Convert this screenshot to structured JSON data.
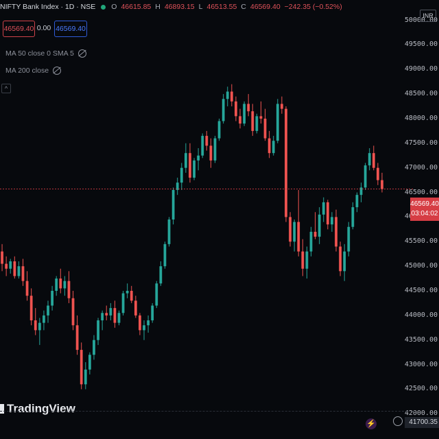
{
  "header": {
    "symbol": "NIFTY Bank Index · 1D · NSE",
    "open_label": "O",
    "open": "46615.85",
    "high_label": "H",
    "high": "46893.15",
    "low_label": "L",
    "low": "46513.55",
    "close_label": "C",
    "close": "46569.40",
    "change": "−242.35 (−0.52%)"
  },
  "trade": {
    "sell_price": "46569.40",
    "spread": "0.00",
    "buy_price": "46569.40"
  },
  "indicators": [
    {
      "label": "MA 50 close 0 SMA 5"
    },
    {
      "label": "MA 200 close"
    }
  ],
  "axis": {
    "currency": "INR",
    "last_price": "46569.40",
    "countdown": "03:04:02",
    "low_marker": "41700.35"
  },
  "branding": {
    "logo_text": "TradingView"
  },
  "colors": {
    "up": "#26a69a",
    "down": "#ef5350",
    "background": "#07090d",
    "price_line": "#d63d44"
  },
  "chart_data": {
    "type": "candlestick",
    "y_axis_ticks": [
      "50000.00",
      "49500.00",
      "49000.00",
      "48500.00",
      "48000.00",
      "47500.00",
      "47000.00",
      "46500.00",
      "46000.00",
      "45500.00",
      "45000.00",
      "44500.00",
      "44000.00",
      "43500.00",
      "43000.00",
      "42500.00",
      "42000.00"
    ],
    "ylim": [
      41600,
      50300
    ],
    "last_close": 46569.4,
    "candles": [
      {
        "o": 45300,
        "h": 45450,
        "l": 44900,
        "c": 45050
      },
      {
        "o": 45050,
        "h": 45200,
        "l": 44800,
        "c": 44950
      },
      {
        "o": 44950,
        "h": 45150,
        "l": 44850,
        "c": 45100
      },
      {
        "o": 45100,
        "h": 45200,
        "l": 44750,
        "c": 44800
      },
      {
        "o": 44800,
        "h": 45100,
        "l": 44750,
        "c": 45000
      },
      {
        "o": 45000,
        "h": 45150,
        "l": 44600,
        "c": 44700
      },
      {
        "o": 44700,
        "h": 44900,
        "l": 44300,
        "c": 44400
      },
      {
        "o": 44400,
        "h": 44550,
        "l": 43800,
        "c": 43900
      },
      {
        "o": 43900,
        "h": 44150,
        "l": 43600,
        "c": 43700
      },
      {
        "o": 43700,
        "h": 43950,
        "l": 43400,
        "c": 43850
      },
      {
        "o": 43850,
        "h": 44100,
        "l": 43700,
        "c": 44000
      },
      {
        "o": 44000,
        "h": 44300,
        "l": 43850,
        "c": 44200
      },
      {
        "o": 44200,
        "h": 44600,
        "l": 44100,
        "c": 44500
      },
      {
        "o": 44500,
        "h": 44800,
        "l": 44400,
        "c": 44750
      },
      {
        "o": 44750,
        "h": 44950,
        "l": 44450,
        "c": 44550
      },
      {
        "o": 44550,
        "h": 44800,
        "l": 44400,
        "c": 44700
      },
      {
        "o": 44700,
        "h": 44900,
        "l": 44250,
        "c": 44350
      },
      {
        "o": 44350,
        "h": 44500,
        "l": 43700,
        "c": 43800
      },
      {
        "o": 43800,
        "h": 44000,
        "l": 43200,
        "c": 43300
      },
      {
        "o": 43300,
        "h": 43450,
        "l": 42500,
        "c": 42600
      },
      {
        "o": 42600,
        "h": 43050,
        "l": 42500,
        "c": 42900
      },
      {
        "o": 42900,
        "h": 43250,
        "l": 42800,
        "c": 43200
      },
      {
        "o": 43200,
        "h": 43600,
        "l": 43100,
        "c": 43500
      },
      {
        "o": 43500,
        "h": 43950,
        "l": 43400,
        "c": 43900
      },
      {
        "o": 43900,
        "h": 44100,
        "l": 43700,
        "c": 44050
      },
      {
        "o": 44050,
        "h": 44200,
        "l": 43900,
        "c": 44000
      },
      {
        "o": 44000,
        "h": 44250,
        "l": 43900,
        "c": 44150
      },
      {
        "o": 44150,
        "h": 44300,
        "l": 43750,
        "c": 43850
      },
      {
        "o": 43850,
        "h": 44100,
        "l": 43800,
        "c": 44050
      },
      {
        "o": 44050,
        "h": 44500,
        "l": 44000,
        "c": 44450
      },
      {
        "o": 44450,
        "h": 44650,
        "l": 44350,
        "c": 44500
      },
      {
        "o": 44500,
        "h": 44600,
        "l": 44250,
        "c": 44300
      },
      {
        "o": 44300,
        "h": 44400,
        "l": 43950,
        "c": 44000
      },
      {
        "o": 44000,
        "h": 44050,
        "l": 43600,
        "c": 43700
      },
      {
        "o": 43700,
        "h": 43900,
        "l": 43500,
        "c": 43800
      },
      {
        "o": 43800,
        "h": 44000,
        "l": 43650,
        "c": 43900
      },
      {
        "o": 43900,
        "h": 44250,
        "l": 43850,
        "c": 44200
      },
      {
        "o": 44200,
        "h": 44700,
        "l": 44150,
        "c": 44650
      },
      {
        "o": 44650,
        "h": 45100,
        "l": 44600,
        "c": 45000
      },
      {
        "o": 45000,
        "h": 45500,
        "l": 44950,
        "c": 45450
      },
      {
        "o": 45450,
        "h": 46000,
        "l": 45400,
        "c": 45950
      },
      {
        "o": 45950,
        "h": 46600,
        "l": 45850,
        "c": 46550
      },
      {
        "o": 46550,
        "h": 46800,
        "l": 46450,
        "c": 46700
      },
      {
        "o": 46700,
        "h": 47100,
        "l": 46550,
        "c": 47000
      },
      {
        "o": 47000,
        "h": 47500,
        "l": 46900,
        "c": 47300
      },
      {
        "o": 47300,
        "h": 47500,
        "l": 46700,
        "c": 46800
      },
      {
        "o": 46800,
        "h": 47200,
        "l": 46750,
        "c": 47150
      },
      {
        "o": 47150,
        "h": 47400,
        "l": 46950,
        "c": 47250
      },
      {
        "o": 47250,
        "h": 47700,
        "l": 47200,
        "c": 47650
      },
      {
        "o": 47650,
        "h": 47750,
        "l": 47350,
        "c": 47450
      },
      {
        "o": 47450,
        "h": 47600,
        "l": 47000,
        "c": 47150
      },
      {
        "o": 47150,
        "h": 47650,
        "l": 47100,
        "c": 47600
      },
      {
        "o": 47600,
        "h": 48000,
        "l": 47550,
        "c": 47950
      },
      {
        "o": 47950,
        "h": 48500,
        "l": 47900,
        "c": 48400
      },
      {
        "o": 48400,
        "h": 48650,
        "l": 48250,
        "c": 48550
      },
      {
        "o": 48550,
        "h": 48700,
        "l": 48250,
        "c": 48350
      },
      {
        "o": 48350,
        "h": 48450,
        "l": 47950,
        "c": 48050
      },
      {
        "o": 48050,
        "h": 48200,
        "l": 47800,
        "c": 47900
      },
      {
        "o": 47900,
        "h": 48350,
        "l": 47850,
        "c": 48300
      },
      {
        "o": 48300,
        "h": 48500,
        "l": 48050,
        "c": 48150
      },
      {
        "o": 48150,
        "h": 48300,
        "l": 47650,
        "c": 47750
      },
      {
        "o": 47750,
        "h": 48100,
        "l": 47700,
        "c": 48050
      },
      {
        "o": 48050,
        "h": 48350,
        "l": 47900,
        "c": 48000
      },
      {
        "o": 48000,
        "h": 48200,
        "l": 47550,
        "c": 47600
      },
      {
        "o": 47600,
        "h": 47750,
        "l": 47200,
        "c": 47300
      },
      {
        "o": 47300,
        "h": 47650,
        "l": 47250,
        "c": 47550
      },
      {
        "o": 47550,
        "h": 48400,
        "l": 47500,
        "c": 48300
      },
      {
        "o": 48300,
        "h": 48450,
        "l": 48100,
        "c": 48200
      },
      {
        "o": 48200,
        "h": 48250,
        "l": 45900,
        "c": 46000
      },
      {
        "o": 46000,
        "h": 46100,
        "l": 45400,
        "c": 45500
      },
      {
        "o": 45500,
        "h": 45950,
        "l": 45300,
        "c": 45900
      },
      {
        "o": 45900,
        "h": 46550,
        "l": 45200,
        "c": 45300
      },
      {
        "o": 45300,
        "h": 45550,
        "l": 44800,
        "c": 44950
      },
      {
        "o": 44950,
        "h": 45400,
        "l": 44750,
        "c": 45300
      },
      {
        "o": 45300,
        "h": 45800,
        "l": 45200,
        "c": 45700
      },
      {
        "o": 45700,
        "h": 46100,
        "l": 45550,
        "c": 45600
      },
      {
        "o": 45600,
        "h": 46200,
        "l": 45450,
        "c": 46050
      },
      {
        "o": 46050,
        "h": 46400,
        "l": 45900,
        "c": 46300
      },
      {
        "o": 46300,
        "h": 46350,
        "l": 45750,
        "c": 45850
      },
      {
        "o": 45850,
        "h": 46100,
        "l": 45700,
        "c": 46000
      },
      {
        "o": 46000,
        "h": 46150,
        "l": 45300,
        "c": 45400
      },
      {
        "o": 45400,
        "h": 45500,
        "l": 44800,
        "c": 44900
      },
      {
        "o": 44900,
        "h": 45450,
        "l": 44700,
        "c": 45300
      },
      {
        "o": 45300,
        "h": 45900,
        "l": 45200,
        "c": 45800
      },
      {
        "o": 45800,
        "h": 46300,
        "l": 45750,
        "c": 46200
      },
      {
        "o": 46200,
        "h": 46500,
        "l": 46100,
        "c": 46450
      },
      {
        "o": 46450,
        "h": 46700,
        "l": 46300,
        "c": 46600
      },
      {
        "o": 46600,
        "h": 47100,
        "l": 46550,
        "c": 47050
      },
      {
        "o": 47050,
        "h": 47400,
        "l": 46950,
        "c": 47300
      },
      {
        "o": 47300,
        "h": 47450,
        "l": 46950,
        "c": 47000
      },
      {
        "o": 47000,
        "h": 47100,
        "l": 46650,
        "c": 46750
      },
      {
        "o": 46750,
        "h": 46900,
        "l": 46500,
        "c": 46570
      }
    ]
  }
}
